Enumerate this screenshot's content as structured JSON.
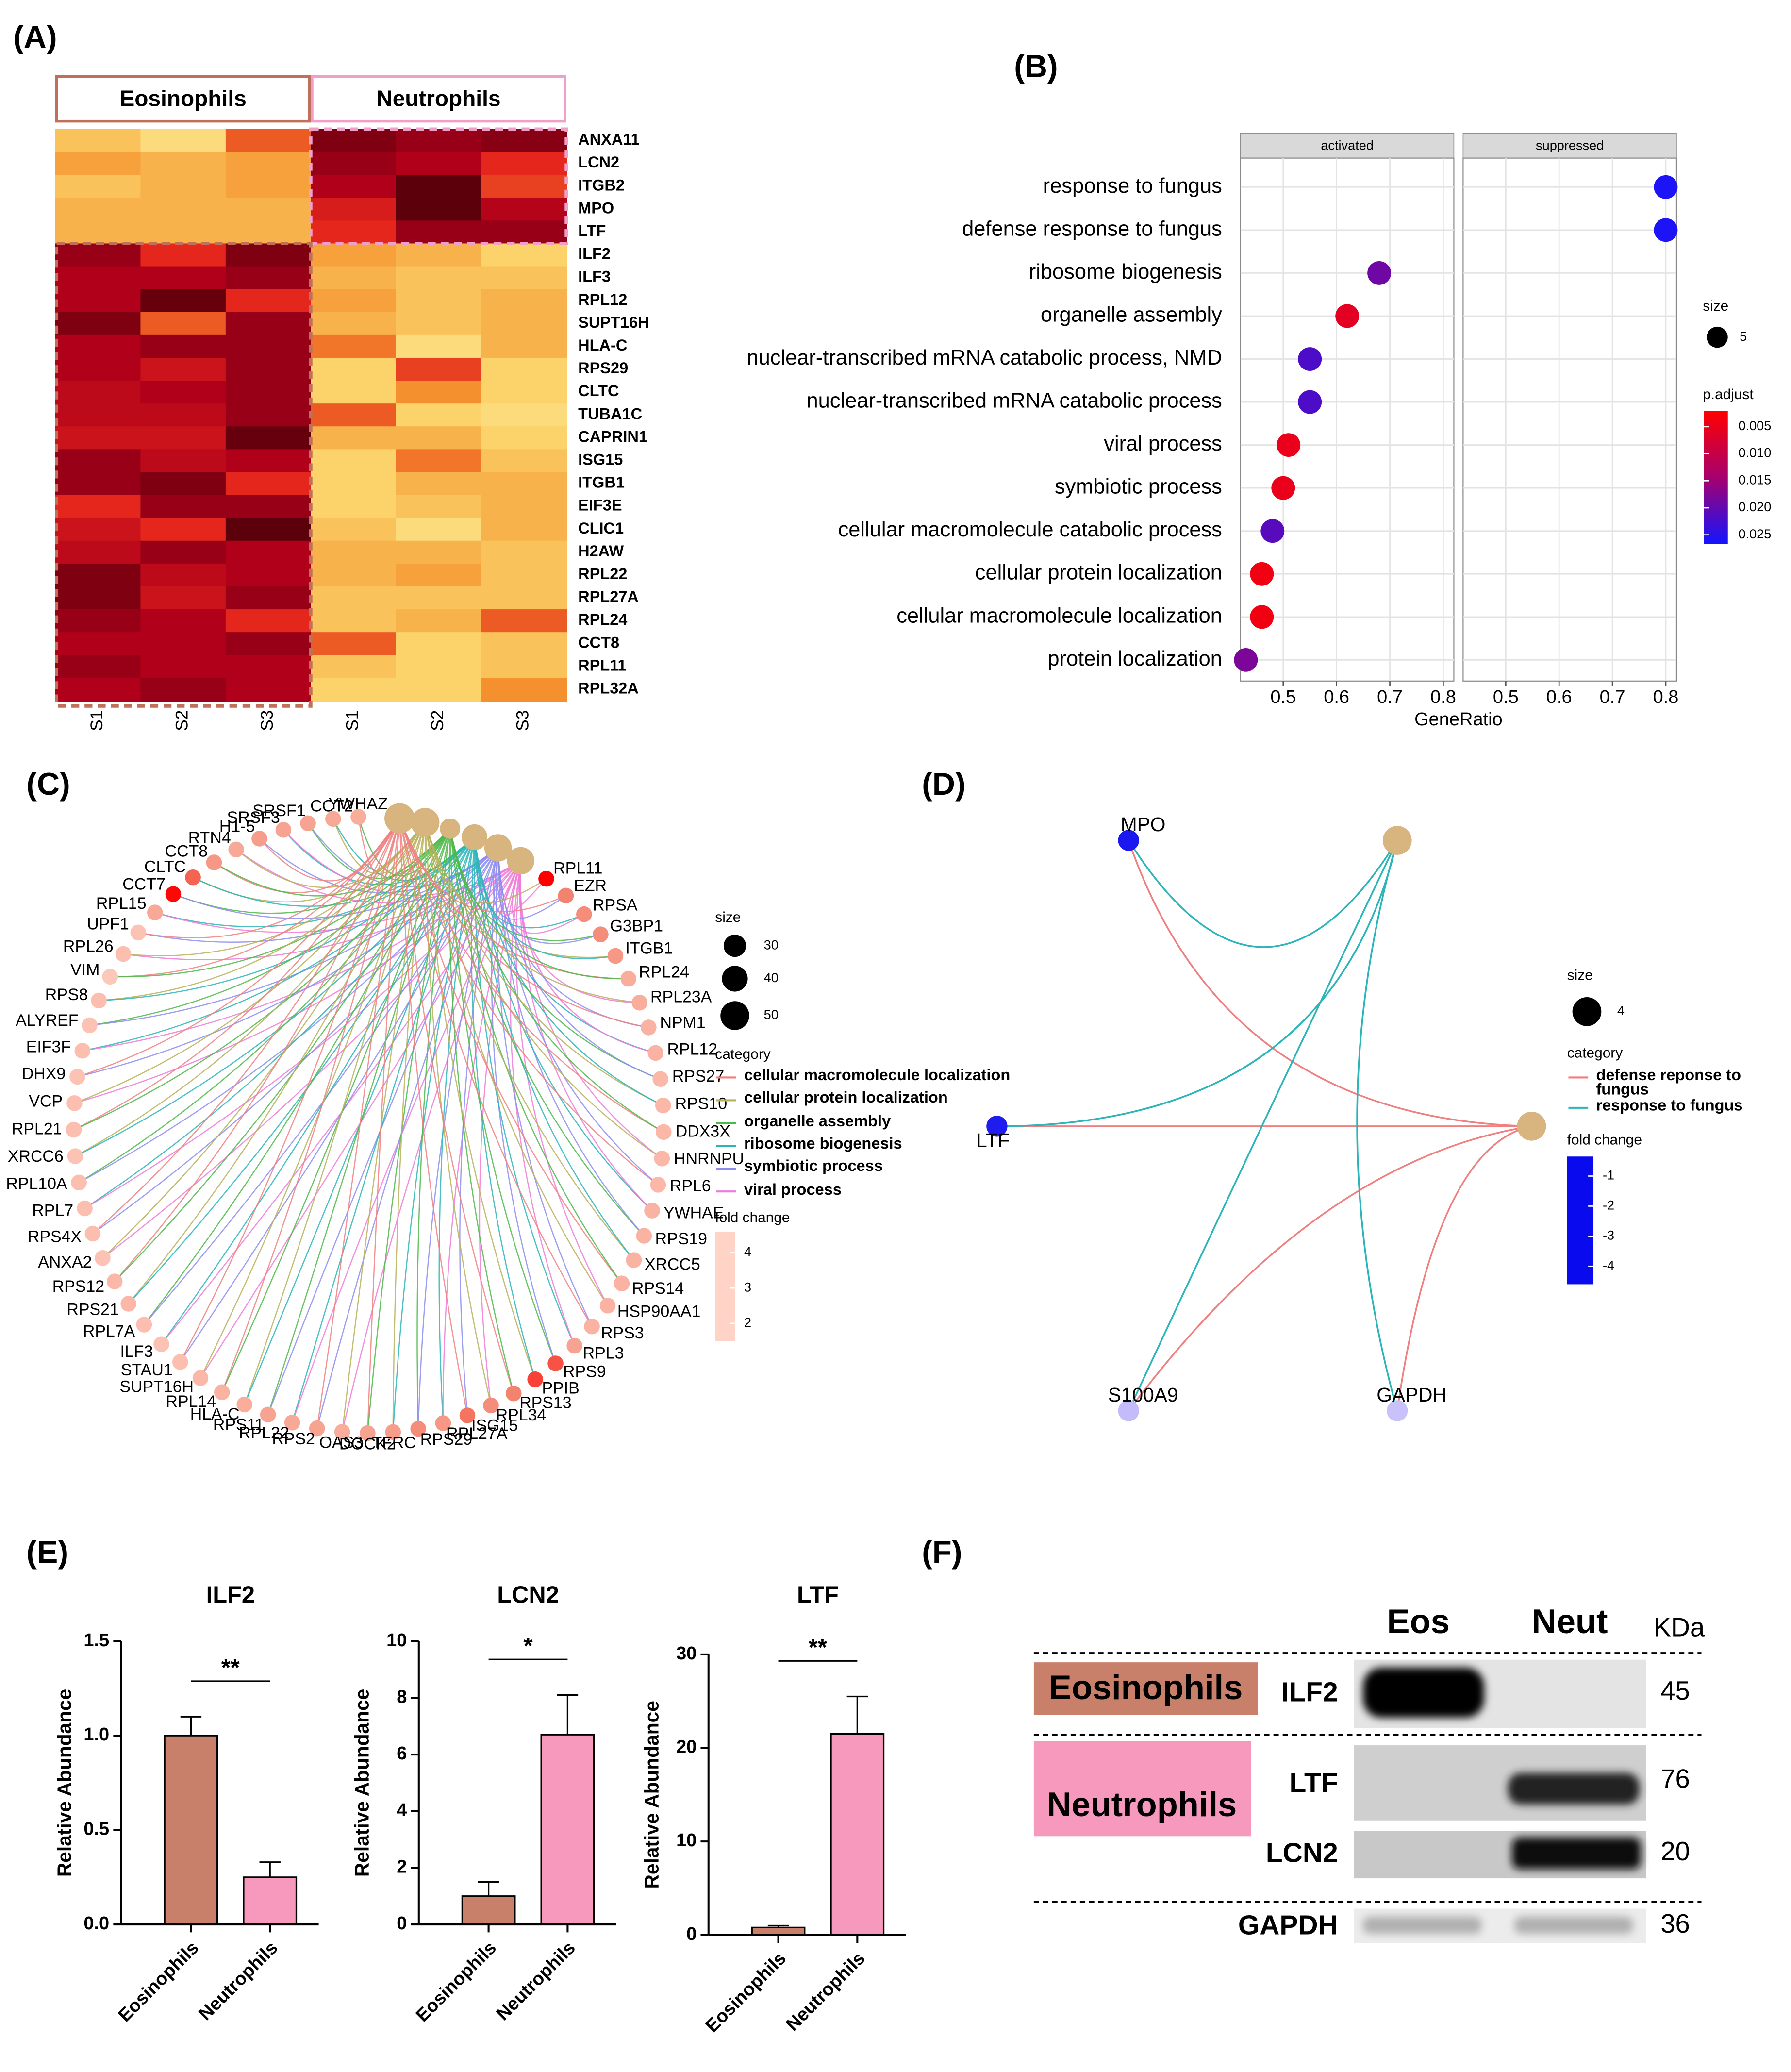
{
  "panel_labels": [
    "(A)",
    "(B)",
    "(C)",
    "(D)",
    "(E)",
    "(F)"
  ],
  "chart_data": [
    {
      "type": "heatmap",
      "groups": [
        "Eosinophils",
        "Neutrophils"
      ],
      "columns": [
        "S1",
        "S2",
        "S3",
        "S1",
        "S2",
        "S3"
      ],
      "rows": [
        "ANXA11",
        "LCN2",
        "ITGB2",
        "MPO",
        "LTF",
        "ILF2",
        "ILF3",
        "RPL12",
        "SUPT16H",
        "HLA-C",
        "RPS29",
        "CLTC",
        "TUBA1C",
        "CAPRIN1",
        "ISG15",
        "ITGB1",
        "EIF3E",
        "CLIC1",
        "H2AW",
        "RPL22",
        "RPL27A",
        "RPL24",
        "CCT8",
        "RPL11",
        "RPL32A"
      ],
      "values": [
        [
          0.25,
          0.15,
          0.5,
          0.9,
          0.85,
          0.88
        ],
        [
          0.35,
          0.3,
          0.35,
          0.85,
          0.8,
          0.6
        ],
        [
          0.25,
          0.3,
          0.35,
          0.8,
          0.97,
          0.55
        ],
        [
          0.3,
          0.3,
          0.3,
          0.65,
          0.97,
          0.78
        ],
        [
          0.3,
          0.3,
          0.3,
          0.6,
          0.85,
          0.85
        ],
        [
          0.85,
          0.6,
          0.9,
          0.35,
          0.3,
          0.2
        ],
        [
          0.8,
          0.8,
          0.85,
          0.3,
          0.25,
          0.25
        ],
        [
          0.8,
          0.95,
          0.6,
          0.35,
          0.25,
          0.3
        ],
        [
          0.9,
          0.5,
          0.85,
          0.3,
          0.25,
          0.3
        ],
        [
          0.8,
          0.85,
          0.85,
          0.45,
          0.15,
          0.3
        ],
        [
          0.8,
          0.7,
          0.85,
          0.2,
          0.55,
          0.2
        ],
        [
          0.75,
          0.8,
          0.85,
          0.2,
          0.4,
          0.2
        ],
        [
          0.75,
          0.75,
          0.85,
          0.5,
          0.2,
          0.15
        ],
        [
          0.7,
          0.7,
          0.95,
          0.3,
          0.3,
          0.2
        ],
        [
          0.85,
          0.75,
          0.8,
          0.2,
          0.45,
          0.25
        ],
        [
          0.85,
          0.9,
          0.6,
          0.2,
          0.3,
          0.3
        ],
        [
          0.6,
          0.85,
          0.85,
          0.2,
          0.25,
          0.3
        ],
        [
          0.7,
          0.6,
          0.97,
          0.25,
          0.15,
          0.3
        ],
        [
          0.75,
          0.85,
          0.8,
          0.3,
          0.3,
          0.25
        ],
        [
          0.9,
          0.75,
          0.8,
          0.3,
          0.35,
          0.25
        ],
        [
          0.9,
          0.7,
          0.85,
          0.25,
          0.25,
          0.25
        ],
        [
          0.85,
          0.8,
          0.6,
          0.25,
          0.3,
          0.5
        ],
        [
          0.8,
          0.8,
          0.85,
          0.5,
          0.2,
          0.25
        ],
        [
          0.85,
          0.8,
          0.8,
          0.25,
          0.2,
          0.25
        ],
        [
          0.8,
          0.85,
          0.8,
          0.2,
          0.2,
          0.4
        ]
      ],
      "zlim": [
        0,
        1
      ],
      "colors": [
        "#fff4b0",
        "#fbd36a",
        "#f5902e",
        "#e4261c",
        "#b0001a",
        "#4d0008"
      ]
    },
    {
      "type": "dot",
      "facets": [
        "activated",
        "suppressed"
      ],
      "categories": [
        "response to fungus",
        "defense response to fungus",
        "ribosome biogenesis",
        "organelle assembly",
        "nuclear-transcribed mRNA catabolic process, NMD",
        "nuclear-transcribed mRNA catabolic process",
        "viral process",
        "symbiotic process",
        "cellular macromolecule catabolic process",
        "cellular protein localization",
        "cellular macromolecule localization",
        "protein localization"
      ],
      "facet": [
        "suppressed",
        "suppressed",
        "activated",
        "activated",
        "activated",
        "activated",
        "activated",
        "activated",
        "activated",
        "activated",
        "activated",
        "activated"
      ],
      "values": [
        0.8,
        0.8,
        0.68,
        0.62,
        0.55,
        0.55,
        0.51,
        0.5,
        0.48,
        0.46,
        0.46,
        0.43
      ],
      "p_adjust": [
        0.026,
        0.026,
        0.019,
        0.006,
        0.022,
        0.022,
        0.005,
        0.005,
        0.021,
        0.004,
        0.004,
        0.018
      ],
      "xlabel": "GeneRatio",
      "xlim": [
        0.42,
        0.82
      ],
      "xticks": [
        0.5,
        0.6,
        0.7,
        0.8
      ],
      "grid": true,
      "size_legend": {
        "title": "size",
        "values": [
          5
        ]
      },
      "color_legend": {
        "title": "p.adjust",
        "lim": [
          0.0021,
          0.0267
        ],
        "ticks": [
          0.005,
          {
            "value": 0.01,
            "label": "0.010"
          },
          0.015,
          {
            "value": 0.02,
            "label": "0.020"
          },
          0.025
        ],
        "colors": [
          "#ff0000",
          "#a6006e",
          "#1414ff"
        ]
      }
    },
    {
      "type": "network",
      "layout": "circle",
      "genes": [
        "YWHAZ",
        "CCT2",
        "SRSF1",
        "SRSF3",
        "H1-5",
        "RTN4",
        "CCT8",
        "CLTC",
        "CCT7",
        "RPL15",
        "UPF1",
        "RPL26",
        "VIM",
        "RPS8",
        "ALYREF",
        "EIF3F",
        "DHX9",
        "VCP",
        "RPL21",
        "XRCC6",
        "RPL10A",
        "RPL7",
        "RPS4X",
        "ANXA2",
        "RPS12",
        "RPS21",
        "RPL7A",
        "ILF3",
        "STAU1",
        "SUPT16H",
        "RPL14",
        "HLA-C",
        "RPS11",
        "RPL22",
        "RPS2",
        "OAS3",
        "DOCK2",
        "TFRC",
        "RPS29",
        "RPL27A",
        "ISG15",
        "RPL34",
        "RPS13",
        "PPIB",
        "RPS9",
        "RPL3",
        "RPS3",
        "HSP90AA1",
        "RPS14",
        "XRCC5",
        "RPS19",
        "YWHAE",
        "RPL6",
        "HNRNPU",
        "DDX3X",
        "RPS10",
        "RPS27",
        "RPL12",
        "NPM1",
        "RPL23A",
        "RPL24",
        "ITGB1",
        "G3BP1",
        "RPSA",
        "EZR",
        "RPL11"
      ],
      "fold_change": [
        2.2,
        2.3,
        2.4,
        2.4,
        2.5,
        2.3,
        2.6,
        3.4,
        4.5,
        2.3,
        1.8,
        1.9,
        1.7,
        1.9,
        1.8,
        1.9,
        1.8,
        1.9,
        1.9,
        1.8,
        1.9,
        1.9,
        1.9,
        1.8,
        2.0,
        2.0,
        1.9,
        1.8,
        1.9,
        2.0,
        2.1,
        2.2,
        2.4,
        2.3,
        2.4,
        2.2,
        2.4,
        2.5,
        2.8,
        2.6,
        3.2,
        2.8,
        3.0,
        3.8,
        3.6,
        2.4,
        2.1,
        2.1,
        2.1,
        2.1,
        2.1,
        2.1,
        2.0,
        2.0,
        2.0,
        2.0,
        2.0,
        2.1,
        2.1,
        2.2,
        2.2,
        2.6,
        2.8,
        2.8,
        3.0,
        4.6
      ],
      "categories": [
        "cellular macromolecule localization",
        "cellular protein localization",
        "organelle assembly",
        "ribosome biogenesis",
        "symbiotic process",
        "viral process"
      ],
      "category_colors": [
        "#f08080",
        "#b8b05a",
        "#4cb848",
        "#2bb5b8",
        "#8c8cf0",
        "#f07ad8"
      ],
      "category_sizes": [
        55,
        50,
        25,
        40,
        45,
        45
      ],
      "category_title": "category",
      "size_legend": {
        "title": "size",
        "values": [
          30,
          40,
          50
        ]
      },
      "color_legend": {
        "title": "fold change",
        "lim": [
          1.5,
          4.6
        ],
        "ticks": [
          2,
          3,
          4
        ],
        "colors": [
          "#ffd3c5",
          "#f2806b",
          "#ff0000"
        ]
      }
    },
    {
      "type": "network",
      "layout": "bipartite",
      "genes": [
        "MPO",
        "LTF",
        "S100A9",
        "GAPDH"
      ],
      "fold_change": [
        -4.3,
        -4.2,
        -1.1,
        -1.0
      ],
      "categories": [
        "defense reponse to fungus",
        "response to fungus"
      ],
      "category_colors": [
        "#f08080",
        "#2bb5b8"
      ],
      "category_sizes": [
        4,
        4
      ],
      "category_title": "category",
      "size_legend": {
        "title": "size",
        "values": [
          4
        ]
      },
      "color_legend": {
        "title": "fold change",
        "lim": [
          -4.6,
          -0.35
        ],
        "ticks": [
          -1,
          -2,
          -3,
          -4
        ],
        "colors": [
          "#0a0aee",
          "#7b6cf5",
          "#ece6fc"
        ]
      }
    },
    {
      "type": "bar",
      "title": "ILF2",
      "categories": [
        "Eosinophils",
        "Neutrophils"
      ],
      "values": [
        1.0,
        0.25
      ],
      "errors": [
        0.1,
        0.08
      ],
      "colors": [
        "#c8806a",
        "#f799bd"
      ],
      "ylabel": "Relative Abundance",
      "ylim": [
        0,
        1.5
      ],
      "yticks": [
        {
          "value": 0,
          "label": "0.0"
        },
        0.5,
        {
          "value": 1,
          "label": "1.0"
        },
        1.5
      ],
      "significance": "**"
    },
    {
      "type": "bar",
      "title": "LCN2",
      "categories": [
        "Eosinophils",
        "Neutrophils"
      ],
      "values": [
        1.0,
        6.7
      ],
      "errors": [
        0.5,
        1.4
      ],
      "colors": [
        "#c8806a",
        "#f799bd"
      ],
      "ylabel": "Relative Abundance",
      "ylim": [
        0,
        10
      ],
      "yticks": [
        0,
        2,
        4,
        6,
        8,
        10
      ],
      "significance": "*"
    },
    {
      "type": "bar",
      "title": "LTF",
      "categories": [
        "Eosinophils",
        "Neutrophils"
      ],
      "values": [
        0.8,
        21.5
      ],
      "errors": [
        0.2,
        4.0
      ],
      "colors": [
        "#c8806a",
        "#f799bd"
      ],
      "ylabel": "Relative Abundance",
      "ylim": [
        0,
        30
      ],
      "yticks": [
        0,
        10,
        20,
        30
      ],
      "significance": "**"
    }
  ],
  "blot": {
    "lanes": [
      "Eos",
      "Neut"
    ],
    "unit": "KDa",
    "groups": [
      "Eosinophils",
      "Neutrophils"
    ],
    "rows": [
      {
        "protein": "ILF2",
        "kda": "45"
      },
      {
        "protein": "LTF",
        "kda": "76"
      },
      {
        "protein": "LCN2",
        "kda": "20"
      },
      {
        "protein": "GAPDH",
        "kda": "36"
      }
    ]
  }
}
